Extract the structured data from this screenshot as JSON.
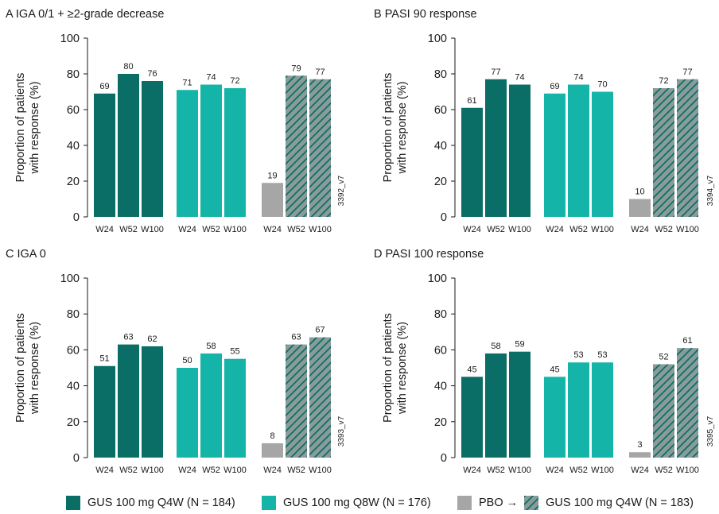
{
  "colors": {
    "gus_q4w": "#0a6e66",
    "gus_q8w": "#14b5a8",
    "pbo": "#a6a6a6",
    "hatch_bg": "#8a9c9a",
    "hatch_line": "#0a6e66"
  },
  "legend": {
    "q4w_label": "GUS 100 mg Q4W (N = 184)",
    "q8w_label": "GUS 100 mg Q8W (N = 176)",
    "pbo_label": "PBO →",
    "pbo_switch_label": "GUS 100 mg Q4W (N = 183)"
  },
  "chart_data": [
    {
      "type": "bar",
      "panel": "A",
      "title": "A  IGA 0/1 + ≥2-grade decrease",
      "ylabel_line1": "Proportion of patients",
      "ylabel_line2": "with response (%)",
      "ylim": [
        0,
        100
      ],
      "yticks": [
        0,
        20,
        40,
        60,
        80,
        100
      ],
      "categories": [
        "W24",
        "W52",
        "W100"
      ],
      "side_code": "3392_v7",
      "series": [
        {
          "name": "GUS 100 mg Q4W (N = 184)",
          "values": [
            69,
            80,
            76
          ]
        },
        {
          "name": "GUS 100 mg Q8W (N = 176)",
          "values": [
            71,
            74,
            72
          ]
        },
        {
          "name": "PBO → GUS 100 mg Q4W (N = 183)",
          "values": [
            19,
            79,
            77
          ]
        }
      ]
    },
    {
      "type": "bar",
      "panel": "B",
      "title": "B  PASI 90 response",
      "ylabel_line1": "Proportion of patients",
      "ylabel_line2": "with response (%)",
      "ylim": [
        0,
        100
      ],
      "yticks": [
        0,
        20,
        40,
        60,
        80,
        100
      ],
      "categories": [
        "W24",
        "W52",
        "W100"
      ],
      "side_code": "3394_v7",
      "series": [
        {
          "name": "GUS 100 mg Q4W (N = 184)",
          "values": [
            61,
            77,
            74
          ]
        },
        {
          "name": "GUS 100 mg Q8W (N = 176)",
          "values": [
            69,
            74,
            70
          ]
        },
        {
          "name": "PBO → GUS 100 mg Q4W (N = 183)",
          "values": [
            10,
            72,
            77
          ]
        }
      ]
    },
    {
      "type": "bar",
      "panel": "C",
      "title": "C  IGA 0",
      "ylabel_line1": "Proportion of patients",
      "ylabel_line2": "with response (%)",
      "ylim": [
        0,
        100
      ],
      "yticks": [
        0,
        20,
        40,
        60,
        80,
        100
      ],
      "categories": [
        "W24",
        "W52",
        "W100"
      ],
      "side_code": "3393_v7",
      "series": [
        {
          "name": "GUS 100 mg Q4W (N = 184)",
          "values": [
            51,
            63,
            62
          ]
        },
        {
          "name": "GUS 100 mg Q8W (N = 176)",
          "values": [
            50,
            58,
            55
          ]
        },
        {
          "name": "PBO → GUS 100 mg Q4W (N = 183)",
          "values": [
            8,
            63,
            67
          ]
        }
      ]
    },
    {
      "type": "bar",
      "panel": "D",
      "title": "D  PASI 100 response",
      "ylabel_line1": "Proportion of patients",
      "ylabel_line2": "with response (%)",
      "ylim": [
        0,
        100
      ],
      "yticks": [
        0,
        20,
        40,
        60,
        80,
        100
      ],
      "categories": [
        "W24",
        "W52",
        "W100"
      ],
      "side_code": "3395_v7",
      "series": [
        {
          "name": "GUS 100 mg Q4W (N = 184)",
          "values": [
            45,
            58,
            59
          ]
        },
        {
          "name": "GUS 100 mg Q8W (N = 176)",
          "values": [
            45,
            53,
            53
          ]
        },
        {
          "name": "PBO → GUS 100 mg Q4W (N = 183)",
          "values": [
            3,
            52,
            61
          ]
        }
      ]
    }
  ]
}
